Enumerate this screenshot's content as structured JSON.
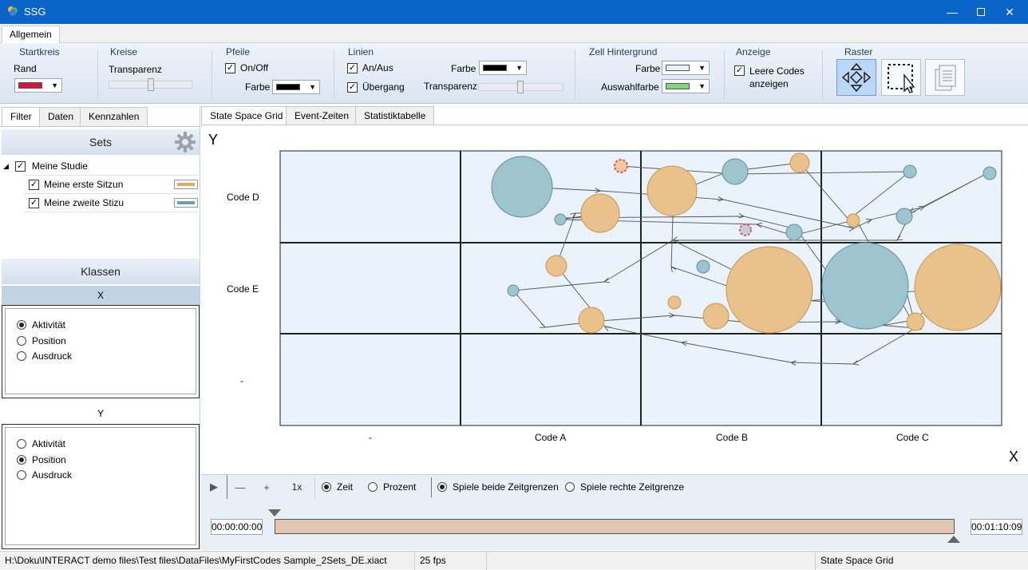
{
  "window": {
    "title": "SSG"
  },
  "menu": {
    "tab": "Allgemein"
  },
  "ribbon": {
    "startkreis": {
      "group": "Startkreis",
      "rand_label": "Rand",
      "rand_color": "#d2173b"
    },
    "kreise": {
      "group": "Kreise",
      "transparenz_label": "Transparenz"
    },
    "pfeile": {
      "group": "Pfeile",
      "onoff_label": "On/Off",
      "farbe_label": "Farbe",
      "farbe_color": "#000000"
    },
    "linien": {
      "group": "Linien",
      "anaus_label": "An/Aus",
      "uebergang_label": "Übergang",
      "farbe_label": "Farbe",
      "farbe_color": "#000000",
      "transparenz_label": "Transparenz"
    },
    "zell": {
      "group": "Zell Hintergrund",
      "farbe_label": "Farbe",
      "farbe_color": "#eaf2fb",
      "auswahl_label": "Auswahlfarbe",
      "auswahl_color": "#7dd87d"
    },
    "anzeige": {
      "group": "Anzeige",
      "leere_codes_label_1": "Leere Codes",
      "leere_codes_label_2": "anzeigen"
    },
    "raster": {
      "group": "Raster",
      "buttons": [
        "move-icon",
        "select-icon",
        "copy-icon"
      ]
    }
  },
  "left_tabs": [
    "Filter",
    "Daten",
    "Kennzahlen"
  ],
  "sets": {
    "header": "Sets",
    "root": "Meine Studie",
    "items": [
      {
        "label": "Meine erste Sitzun",
        "color": "#e5aa5e"
      },
      {
        "label": "Meine zweite Stizu",
        "color": "#6f9eae"
      }
    ]
  },
  "klassen": {
    "header": "Klassen",
    "x_header": "X",
    "y_header": "Y",
    "x_options": [
      "Aktivität",
      "Position",
      "Ausdruck"
    ],
    "x_selected": "Aktivität",
    "y_options": [
      "Aktivität",
      "Position",
      "Ausdruck"
    ],
    "y_selected": "Position"
  },
  "main_tabs": [
    "State Space Grid",
    "Event-Zeiten",
    "Statistiktabelle"
  ],
  "grid": {
    "y_axis_label": "Y",
    "x_axis_label": "X",
    "x_categories": [
      "-",
      "Code A",
      "Code B",
      "Code C"
    ],
    "y_categories": [
      "Code D",
      "Code E",
      "-"
    ],
    "colors": {
      "orange": "#e9c18a",
      "orange_stroke": "#c9954e",
      "blue": "#9ec4cf",
      "blue_stroke": "#5b8f9f",
      "cell": "#eaf2fb",
      "start": "#e55353"
    }
  },
  "transport": {
    "speed": "1x",
    "zeit_label": "Zeit",
    "prozent_label": "Prozent",
    "beide_label": "Spiele beide Zeitgrenzen",
    "rechte_label": "Spiele rechte Zeitgrenze"
  },
  "timeline": {
    "start": "00:00:00:00",
    "end": "00:01:10:09",
    "bar_color": "#e0c7b4"
  },
  "status": {
    "path": "H:\\Doku\\INTERACT demo files\\Test files\\DataFiles\\MyFirstCodes Sample_2Sets_DE.xiact",
    "fps": "25 fps",
    "view": "State Space Grid"
  }
}
